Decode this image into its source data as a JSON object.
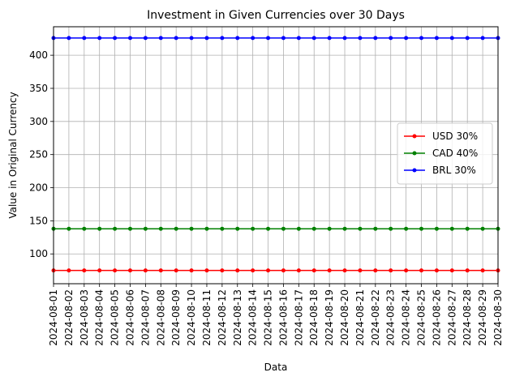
{
  "chart_data": {
    "type": "line",
    "title": "Investment in Given Currencies over 30 Days",
    "xlabel": "Data",
    "ylabel": "Value in Original Currency",
    "x": [
      "2024-08-01",
      "2024-08-02",
      "2024-08-03",
      "2024-08-04",
      "2024-08-05",
      "2024-08-06",
      "2024-08-07",
      "2024-08-08",
      "2024-08-09",
      "2024-08-10",
      "2024-08-11",
      "2024-08-12",
      "2024-08-13",
      "2024-08-14",
      "2024-08-15",
      "2024-08-16",
      "2024-08-17",
      "2024-08-18",
      "2024-08-19",
      "2024-08-20",
      "2024-08-21",
      "2024-08-22",
      "2024-08-23",
      "2024-08-24",
      "2024-08-25",
      "2024-08-26",
      "2024-08-27",
      "2024-08-28",
      "2024-08-29",
      "2024-08-30"
    ],
    "ylim": [
      55,
      443
    ],
    "yticks": [
      100,
      150,
      200,
      250,
      300,
      350,
      400
    ],
    "grid": true,
    "legend_position": "center-right",
    "series": [
      {
        "name": "USD 30%",
        "color": "#ff0000",
        "marker": "circle",
        "values": [
          75,
          75,
          75,
          75,
          75,
          75,
          75,
          75,
          75,
          75,
          75,
          75,
          75,
          75,
          75,
          75,
          75,
          75,
          75,
          75,
          75,
          75,
          75,
          75,
          75,
          75,
          75,
          75,
          75,
          75
        ]
      },
      {
        "name": "CAD 40%",
        "color": "#008000",
        "marker": "circle",
        "values": [
          138,
          138,
          138,
          138,
          138,
          138,
          138,
          138,
          138,
          138,
          138,
          138,
          138,
          138,
          138,
          138,
          138,
          138,
          138,
          138,
          138,
          138,
          138,
          138,
          138,
          138,
          138,
          138,
          138,
          138
        ]
      },
      {
        "name": "BRL 30%",
        "color": "#0000ff",
        "marker": "circle",
        "values": [
          426,
          426,
          426,
          426,
          426,
          426,
          426,
          426,
          426,
          426,
          426,
          426,
          426,
          426,
          426,
          426,
          426,
          426,
          426,
          426,
          426,
          426,
          426,
          426,
          426,
          426,
          426,
          426,
          426,
          426
        ]
      }
    ]
  }
}
